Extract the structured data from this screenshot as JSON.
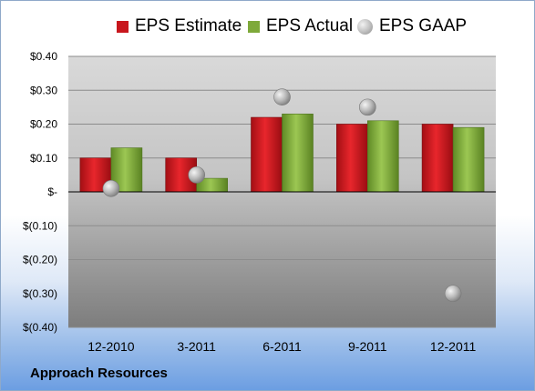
{
  "chart_data": {
    "type": "bar",
    "categories": [
      "12-2010",
      "3-2011",
      "6-2011",
      "9-2011",
      "12-2011"
    ],
    "series": [
      {
        "name": "EPS Estimate",
        "kind": "bar",
        "color": "#c8161d",
        "values": [
          0.1,
          0.1,
          0.22,
          0.2,
          0.2
        ]
      },
      {
        "name": "EPS Actual",
        "kind": "bar",
        "color": "#7ea93a",
        "values": [
          0.13,
          0.04,
          0.23,
          0.21,
          0.19
        ]
      },
      {
        "name": "EPS GAAP",
        "kind": "scatter",
        "color": "#a6a6a6",
        "values": [
          0.01,
          0.05,
          0.28,
          0.25,
          -0.3
        ]
      }
    ],
    "ylim": [
      -0.4,
      0.4
    ],
    "yticks": [
      0.4,
      0.3,
      0.2,
      0.1,
      0.0,
      -0.1,
      -0.2,
      -0.3,
      -0.4
    ],
    "ytick_labels": [
      "$0.40",
      "$0.30",
      "$0.20",
      "$0.10",
      "$-",
      "$(0.10)",
      "$(0.20)",
      "$(0.30)",
      "$(0.40)"
    ],
    "legend_position": "top",
    "grid": true
  },
  "footer": {
    "company": "Approach Resources"
  }
}
